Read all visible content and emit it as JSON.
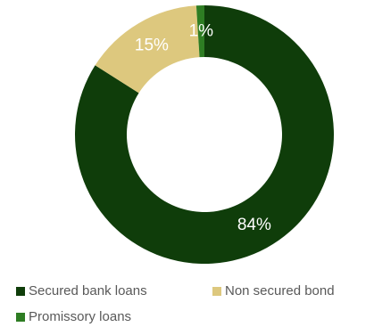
{
  "chart_data": {
    "type": "pie",
    "donut": true,
    "categories": [
      "Secured bank loans",
      "Non secured bond",
      "Promissory loans"
    ],
    "values": [
      84,
      15,
      1
    ],
    "labels": [
      "84%",
      "15%",
      "1%"
    ],
    "colors": [
      "#0f3d0a",
      "#ddc87e",
      "#2e7d23"
    ],
    "legend_position": "bottom",
    "title": ""
  }
}
